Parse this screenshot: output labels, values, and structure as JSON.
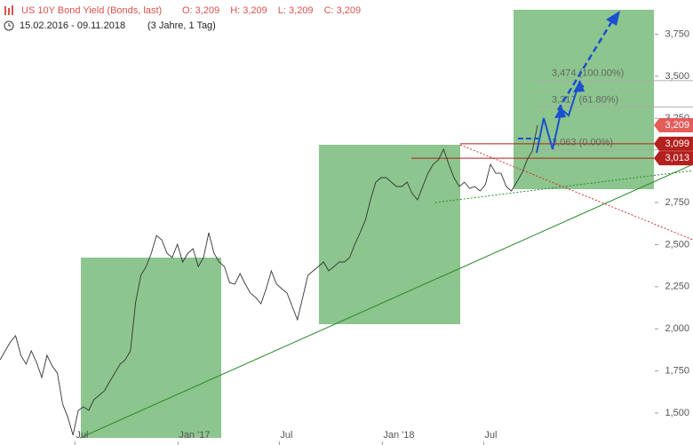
{
  "chart_data": {
    "type": "line",
    "title": "US 10Y Bond Yield (Bonds, last)",
    "ohlc": [
      "O: 3,209",
      "H: 3,209",
      "L: 3,209",
      "C: 3,209"
    ],
    "date_range": "15.02.2016 - 09.11.2018",
    "period": "(3 Jahre, 1 Tag)",
    "xlim": [
      "2016-02-15",
      "2018-11-09"
    ],
    "xticks": [
      {
        "value": "2016-07",
        "label": "Jul"
      },
      {
        "value": "2017-01",
        "label": "Jan '17"
      },
      {
        "value": "2017-07",
        "label": "Jul"
      },
      {
        "value": "2018-01",
        "label": "Jan '18"
      },
      {
        "value": "2018-07",
        "label": "Jul"
      }
    ],
    "ylim": [
      1.31,
      3.953
    ],
    "yticks": [
      {
        "value": 1.5,
        "label": "1,500"
      },
      {
        "value": 1.75,
        "label": "1,750"
      },
      {
        "value": 2.0,
        "label": "2,000"
      },
      {
        "value": 2.25,
        "label": "2,250"
      },
      {
        "value": 2.5,
        "label": "2,500"
      },
      {
        "value": 2.75,
        "label": "2,750"
      },
      {
        "value": 3.25,
        "label": "3,250"
      },
      {
        "value": 3.5,
        "label": "3,500"
      },
      {
        "value": 3.75,
        "label": "3,750"
      }
    ],
    "series": [
      {
        "name": "US 10Y Bond Yield",
        "color": "#333333",
        "values": [
          1.816,
          1.869,
          1.922,
          1.959,
          1.843,
          1.79,
          1.869,
          1.801,
          1.711,
          1.843,
          1.78,
          1.737,
          1.553,
          1.474,
          1.368,
          1.516,
          1.537,
          1.516,
          1.579,
          1.605,
          1.632,
          1.685,
          1.737,
          1.79,
          1.816,
          1.869,
          2.159,
          2.318,
          2.37,
          2.449,
          2.555,
          2.528,
          2.449,
          2.423,
          2.502,
          2.397,
          2.449,
          2.476,
          2.37,
          2.423,
          2.571,
          2.449,
          2.397,
          2.37,
          2.275,
          2.265,
          2.328,
          2.265,
          2.212,
          2.186,
          2.149,
          2.238,
          2.344,
          2.265,
          2.238,
          2.212,
          2.133,
          2.054,
          2.186,
          2.318,
          2.344,
          2.37,
          2.397,
          2.344,
          2.37,
          2.397,
          2.397,
          2.423,
          2.502,
          2.571,
          2.645,
          2.766,
          2.871,
          2.898,
          2.898,
          2.871,
          2.845,
          2.845,
          2.871,
          2.803,
          2.766,
          2.845,
          2.924,
          2.977,
          3.003,
          3.066,
          2.977,
          2.898,
          2.845,
          2.871,
          2.834,
          2.845,
          2.819,
          2.856,
          2.977,
          2.924,
          2.924,
          2.845,
          2.819,
          2.871,
          2.924,
          3.003,
          3.056,
          3.209
        ]
      }
    ],
    "fib_levels": [
      {
        "value": 3.474,
        "label": "3,474 (100.00%)"
      },
      {
        "value": 3.317,
        "label": "3,317 (61.80%)"
      },
      {
        "value": 3.063,
        "label": "3,063 (0.00%)"
      }
    ],
    "price_labels": [
      {
        "value": 3.209,
        "label": "3,209",
        "color": "#e35d5b"
      },
      {
        "value": 3.099,
        "label": "3,099",
        "color": "#b3201d"
      },
      {
        "value": 3.013,
        "label": "3,013",
        "color": "#b3201d"
      }
    ]
  }
}
